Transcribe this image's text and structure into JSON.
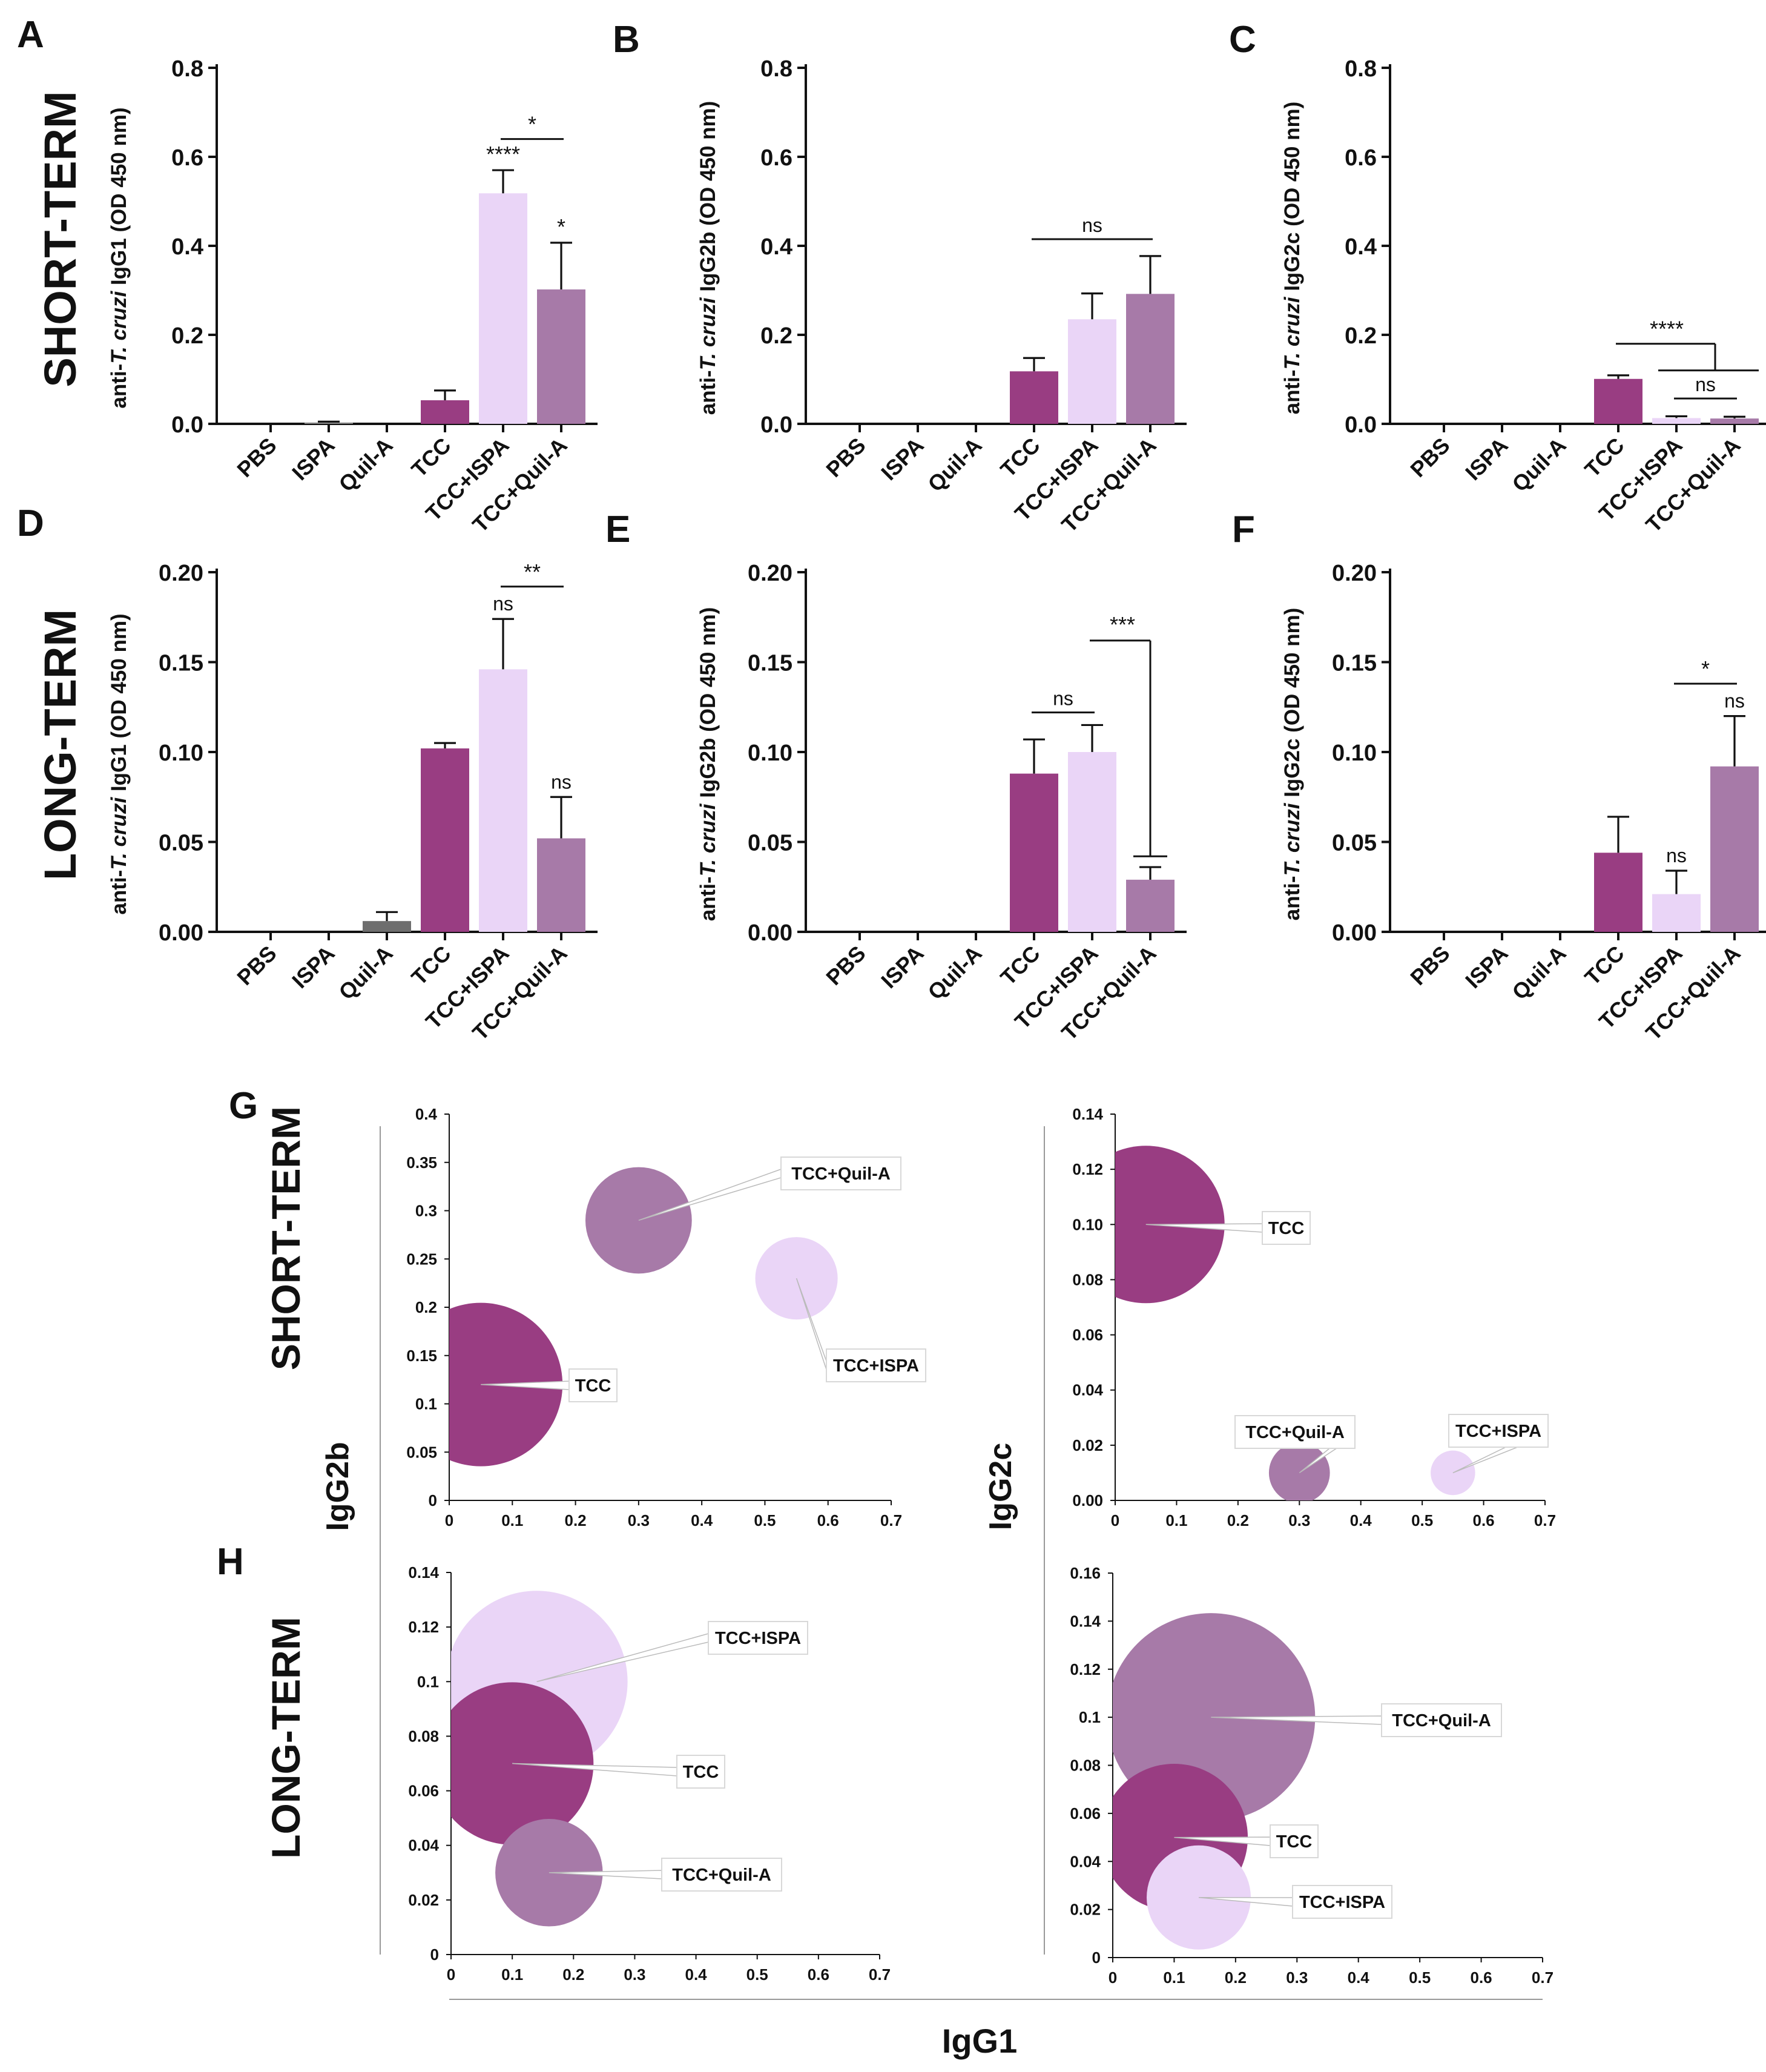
{
  "panel_letters": [
    "A",
    "B",
    "C",
    "D",
    "E",
    "F",
    "G",
    "H"
  ],
  "row_titles": {
    "short": "SHORT-TERM",
    "long": "LONG-TERM"
  },
  "colors": {
    "PBS": "#ffffff",
    "ISPA": "#8a8a8a",
    "Quil-A": "#6e6e6e",
    "TCC": "#993d82",
    "TCC+ISPA": "#ead5f7",
    "TCC+Quil-A": "#a77aa8"
  },
  "chart_data": [
    {
      "id": "A",
      "type": "bar",
      "title": "",
      "ylabel_pre": "anti-",
      "ylabel_italic": "T. cruzi",
      "ylabel_post": " IgG1 (OD 450 nm)",
      "categories": [
        "PBS",
        "ISPA",
        "Quil-A",
        "TCC",
        "TCC+ISPA",
        "TCC+Quil-A"
      ],
      "values": [
        0,
        0.003,
        0,
        0.053,
        0.518,
        0.302
      ],
      "errors": [
        0,
        0.002,
        0,
        0.022,
        0.052,
        0.105
      ],
      "ylim": [
        0,
        0.8
      ],
      "yticks": [
        "0.0",
        "0.2",
        "0.4",
        "0.6",
        "0.8"
      ],
      "stars": [
        {
          "cat": 4,
          "text": "****"
        },
        {
          "cat": 5,
          "text": "*"
        }
      ],
      "comparisons": [
        {
          "type": "bracket",
          "from": 4,
          "to": 5,
          "y": 0.64,
          "text": "*"
        }
      ]
    },
    {
      "id": "B",
      "type": "bar",
      "title": "",
      "ylabel_pre": "anti-",
      "ylabel_italic": "T. cruzi",
      "ylabel_post": " IgG2b (OD 450 nm)",
      "categories": [
        "PBS",
        "ISPA",
        "Quil-A",
        "TCC",
        "TCC+ISPA",
        "TCC+Quil-A"
      ],
      "values": [
        0,
        0,
        0,
        0.118,
        0.235,
        0.292
      ],
      "errors": [
        0,
        0,
        0,
        0.03,
        0.058,
        0.085
      ],
      "ylim": [
        0,
        0.8
      ],
      "yticks": [
        "0.0",
        "0.2",
        "0.4",
        "0.6",
        "0.8"
      ],
      "stars": [],
      "comparisons": [
        {
          "type": "bracket",
          "from": 3,
          "to": 5,
          "y": 0.415,
          "text": "ns"
        }
      ]
    },
    {
      "id": "C",
      "type": "bar",
      "title": "",
      "ylabel_pre": "anti-",
      "ylabel_italic": "T. cruzi",
      "ylabel_post": " IgG2c (OD 450 nm)",
      "categories": [
        "PBS",
        "ISPA",
        "Quil-A",
        "TCC",
        "TCC+ISPA",
        "TCC+Quil-A"
      ],
      "values": [
        0,
        0,
        0,
        0.101,
        0.013,
        0.012
      ],
      "errors": [
        0,
        0,
        0,
        0.008,
        0.004,
        0.004
      ],
      "ylim": [
        0,
        0.8
      ],
      "yticks": [
        "0.0",
        "0.2",
        "0.4",
        "0.6",
        "0.8"
      ],
      "stars": [],
      "comparisons": [
        {
          "type": "group",
          "from": 3,
          "grp_from": 4,
          "grp_to": 5,
          "y": 0.18,
          "y2": 0.12,
          "text": "****"
        },
        {
          "type": "bracket",
          "from": 4,
          "to": 5,
          "y": 0.057,
          "text": "ns"
        }
      ]
    },
    {
      "id": "D",
      "type": "bar",
      "title": "",
      "ylabel_pre": "anti-",
      "ylabel_italic": "T. cruzi",
      "ylabel_post": " IgG1 (OD 450 nm)",
      "categories": [
        "PBS",
        "ISPA",
        "Quil-A",
        "TCC",
        "TCC+ISPA",
        "TCC+Quil-A"
      ],
      "values": [
        0,
        0,
        0.006,
        0.102,
        0.146,
        0.052
      ],
      "errors": [
        0,
        0,
        0.005,
        0.003,
        0.028,
        0.023
      ],
      "ylim": [
        0,
        0.2
      ],
      "yticks": [
        "0.00",
        "0.05",
        "0.10",
        "0.15",
        "0.20"
      ],
      "stars": [
        {
          "cat": 4,
          "text": "ns"
        },
        {
          "cat": 5,
          "text": "ns"
        }
      ],
      "comparisons": [
        {
          "type": "bracket",
          "from": 4,
          "to": 5,
          "y": 0.192,
          "text": "**"
        }
      ]
    },
    {
      "id": "E",
      "type": "bar",
      "title": "",
      "ylabel_pre": "anti-",
      "ylabel_italic": "T. cruzi",
      "ylabel_post": " IgG2b (OD 450 nm)",
      "categories": [
        "PBS",
        "ISPA",
        "Quil-A",
        "TCC",
        "TCC+ISPA",
        "TCC+Quil-A"
      ],
      "values": [
        0,
        0,
        0,
        0.088,
        0.1,
        0.029
      ],
      "errors": [
        0,
        0,
        0,
        0.019,
        0.015,
        0.007
      ],
      "ylim": [
        0,
        0.2
      ],
      "yticks": [
        "0.00",
        "0.05",
        "0.10",
        "0.15",
        "0.20"
      ],
      "stars": [],
      "comparisons": [
        {
          "type": "bracket",
          "from": 3,
          "to": 4,
          "y": 0.122,
          "text": "ns"
        },
        {
          "type": "vline",
          "from": 4,
          "to": 5,
          "y": 0.162,
          "yend": 0.042,
          "text": "***"
        }
      ]
    },
    {
      "id": "F",
      "type": "bar",
      "title": "",
      "ylabel_pre": "anti-",
      "ylabel_italic": "T. cruzi",
      "ylabel_post": " IgG2c (OD 450 nm)",
      "categories": [
        "PBS",
        "ISPA",
        "Quil-A",
        "TCC",
        "TCC+ISPA",
        "TCC+Quil-A"
      ],
      "values": [
        0,
        0,
        0,
        0.044,
        0.021,
        0.092
      ],
      "errors": [
        0,
        0,
        0,
        0.02,
        0.013,
        0.028
      ],
      "ylim": [
        0,
        0.2
      ],
      "yticks": [
        "0.00",
        "0.05",
        "0.10",
        "0.15",
        "0.20"
      ],
      "stars": [
        {
          "cat": 4,
          "text": "ns"
        },
        {
          "cat": 5,
          "text": "ns"
        }
      ],
      "comparisons": [
        {
          "type": "bracket",
          "from": 4,
          "to": 5,
          "y": 0.138,
          "text": "*"
        }
      ]
    },
    {
      "id": "G1",
      "type": "scatter",
      "subtype": "bubble",
      "xlabel": "IgG1",
      "ylabel": "IgG2b",
      "xlim": [
        0,
        0.7
      ],
      "ylim": [
        0,
        0.4
      ],
      "xticks": [
        "0",
        "0.1",
        "0.2",
        "0.3",
        "0.4",
        "0.5",
        "0.6",
        "0.7"
      ],
      "yticks": [
        "0",
        "0.05",
        "0.1",
        "0.15",
        "0.2",
        "0.25",
        "0.3",
        "0.35",
        "0.4"
      ],
      "points": [
        {
          "name": "TCC",
          "x": 0.05,
          "y": 0.12,
          "z": 0.118
        },
        {
          "name": "TCC+Quil-A",
          "x": 0.3,
          "y": 0.29,
          "z": 0.05
        },
        {
          "name": "TCC+ISPA",
          "x": 0.55,
          "y": 0.23,
          "z": 0.03
        }
      ]
    },
    {
      "id": "G2",
      "type": "scatter",
      "subtype": "bubble",
      "xlabel": "IgG1",
      "ylabel": "IgG2c",
      "xlim": [
        0,
        0.7
      ],
      "ylim": [
        0,
        0.14
      ],
      "xticks": [
        "0",
        "0.1",
        "0.2",
        "0.3",
        "0.4",
        "0.5",
        "0.6",
        "0.7"
      ],
      "yticks": [
        "0.00",
        "0.02",
        "0.04",
        "0.06",
        "0.08",
        "0.10",
        "0.12",
        "0.14"
      ],
      "points": [
        {
          "name": "TCC",
          "x": 0.05,
          "y": 0.1,
          "z": 0.1
        },
        {
          "name": "TCC+Quil-A",
          "x": 0.3,
          "y": 0.01,
          "z": 0.015
        },
        {
          "name": "TCC+ISPA",
          "x": 0.55,
          "y": 0.01,
          "z": 0.008
        }
      ]
    },
    {
      "id": "H1",
      "type": "scatter",
      "subtype": "bubble",
      "xlabel": "IgG1",
      "ylabel": "IgG2b",
      "xlim": [
        0,
        0.7
      ],
      "ylim": [
        0,
        0.14
      ],
      "xticks": [
        "0",
        "0.1",
        "0.2",
        "0.3",
        "0.4",
        "0.5",
        "0.6",
        "0.7"
      ],
      "yticks": [
        "0",
        "0.02",
        "0.04",
        "0.06",
        "0.08",
        "0.1",
        "0.12",
        "0.14"
      ],
      "points": [
        {
          "name": "TCC",
          "x": 0.1,
          "y": 0.07,
          "z": 0.08
        },
        {
          "name": "TCC+ISPA",
          "x": 0.14,
          "y": 0.1,
          "z": 0.1
        },
        {
          "name": "TCC+Quil-A",
          "x": 0.16,
          "y": 0.03,
          "z": 0.035
        }
      ]
    },
    {
      "id": "H2",
      "type": "scatter",
      "subtype": "bubble",
      "xlabel": "IgG1",
      "ylabel": "IgG2c",
      "xlim": [
        0,
        0.7
      ],
      "ylim": [
        0,
        0.16
      ],
      "xticks": [
        "0",
        "0.1",
        "0.2",
        "0.3",
        "0.4",
        "0.5",
        "0.6",
        "0.7"
      ],
      "yticks": [
        "0",
        "0.02",
        "0.04",
        "0.06",
        "0.08",
        "0.1",
        "0.12",
        "0.14",
        "0.16"
      ],
      "points": [
        {
          "name": "TCC+Quil-A",
          "x": 0.16,
          "y": 0.1,
          "z": 0.1
        },
        {
          "name": "TCC",
          "x": 0.1,
          "y": 0.05,
          "z": 0.05
        },
        {
          "name": "TCC+ISPA",
          "x": 0.14,
          "y": 0.025,
          "z": 0.025
        }
      ]
    }
  ],
  "shared_labels": {
    "igg1": "IgG1",
    "igg2b": "IgG2b",
    "igg2c": "IgG2c"
  }
}
